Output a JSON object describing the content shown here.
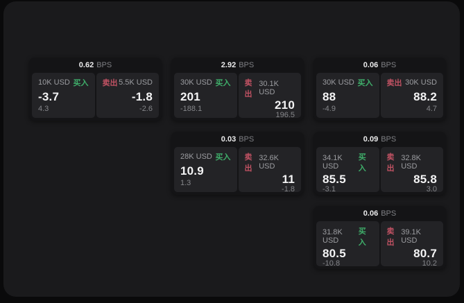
{
  "labels": {
    "bps_unit": "BPS",
    "buy": "买入",
    "sell": "卖出"
  },
  "colors": {
    "buy_green": "#3fae6a",
    "sell_red": "#c05263",
    "panel_bg": "#1a1a1c",
    "card_bg": "#141416",
    "pane_bg": "#232326"
  },
  "cards": [
    {
      "bps": "0.62",
      "buy": {
        "amount": "10K USD",
        "price": "-3.7",
        "delta": "4.3"
      },
      "sell": {
        "amount": "5.5K USD",
        "price": "-1.8",
        "delta": "-2.6"
      }
    },
    {
      "bps": "2.92",
      "buy": {
        "amount": "30K USD",
        "price": "201",
        "delta": "-188.1"
      },
      "sell": {
        "amount": "30.1K USD",
        "price": "210",
        "delta": "196.5"
      }
    },
    {
      "bps": "0.06",
      "buy": {
        "amount": "30K USD",
        "price": "88",
        "delta": "-4.9"
      },
      "sell": {
        "amount": "30K USD",
        "price": "88.2",
        "delta": "4.7"
      }
    },
    {
      "bps": "0.03",
      "buy": {
        "amount": "28K USD",
        "price": "10.9",
        "delta": "1.3"
      },
      "sell": {
        "amount": "32.6K USD",
        "price": "11",
        "delta": "-1.8"
      }
    },
    {
      "bps": "0.09",
      "buy": {
        "amount": "34.1K USD",
        "price": "85.5",
        "delta": "-3.1"
      },
      "sell": {
        "amount": "32.8K USD",
        "price": "85.8",
        "delta": "3.0"
      }
    },
    {
      "bps": "0.06",
      "buy": {
        "amount": "31.8K USD",
        "price": "80.5",
        "delta": "-10.8"
      },
      "sell": {
        "amount": "39.1K USD",
        "price": "80.7",
        "delta": "10.2"
      }
    }
  ]
}
